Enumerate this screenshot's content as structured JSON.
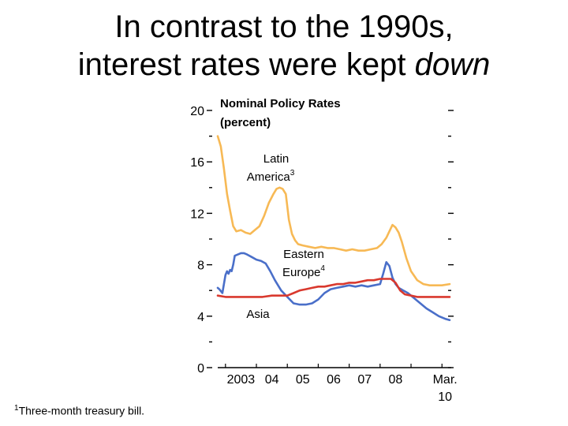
{
  "slide": {
    "title_line1": "In contrast to the 1990s,",
    "title_line2_prefix": "interest rates were kept ",
    "title_line2_emphasis": "down"
  },
  "footnote": {
    "marker": "1",
    "text": "Three-month treasury bill."
  },
  "chart_data": {
    "type": "line",
    "title_line1": "Nominal Policy Rates",
    "title_line2": "(percent)",
    "x_tick_labels": [
      "2003",
      "04",
      "05",
      "06",
      "07",
      "08",
      "Mar."
    ],
    "x_tick_sublabel": "10",
    "xlim": [
      2002.75,
      2010.3
    ],
    "ylim": [
      0,
      20
    ],
    "y_major_ticks": [
      0,
      4,
      8,
      12,
      16,
      20
    ],
    "y_minor_ticks": [
      2,
      6,
      10,
      14,
      18
    ],
    "grid": false,
    "series": [
      {
        "name": "Latin America",
        "label_line1": "Latin",
        "label_line2": "America",
        "note": "3",
        "color": "#F7B955",
        "x": [
          2002.75,
          2002.85,
          2002.95,
          2003.05,
          2003.15,
          2003.25,
          2003.35,
          2003.5,
          2003.65,
          2003.8,
          2003.95,
          2004.1,
          2004.25,
          2004.4,
          2004.55,
          2004.65,
          2004.75,
          2004.85,
          2004.95,
          2005.05,
          2005.15,
          2005.25,
          2005.35,
          2005.5,
          2005.7,
          2005.9,
          2006.1,
          2006.3,
          2006.5,
          2006.7,
          2006.9,
          2007.1,
          2007.3,
          2007.5,
          2007.7,
          2007.9,
          2008.05,
          2008.2,
          2008.3,
          2008.4,
          2008.5,
          2008.6,
          2008.7,
          2008.85,
          2009.0,
          2009.2,
          2009.4,
          2009.6,
          2009.8,
          2010.0,
          2010.25
        ],
        "values": [
          18.0,
          17.2,
          15.5,
          13.5,
          12.2,
          11.0,
          10.6,
          10.7,
          10.5,
          10.4,
          10.7,
          11.0,
          11.8,
          12.8,
          13.5,
          13.9,
          14.0,
          13.9,
          13.5,
          11.5,
          10.4,
          9.9,
          9.6,
          9.5,
          9.4,
          9.3,
          9.4,
          9.3,
          9.3,
          9.2,
          9.1,
          9.2,
          9.1,
          9.1,
          9.2,
          9.3,
          9.6,
          10.1,
          10.6,
          11.1,
          10.9,
          10.5,
          9.8,
          8.5,
          7.5,
          6.8,
          6.5,
          6.4,
          6.4,
          6.4,
          6.5
        ]
      },
      {
        "name": "Eastern Europe",
        "label_line1": "Eastern",
        "label_line2": "Europe",
        "note": "4",
        "color": "#4A6FC9",
        "x": [
          2002.75,
          2002.8,
          2002.9,
          2003.0,
          2003.05,
          2003.1,
          2003.15,
          2003.2,
          2003.25,
          2003.3,
          2003.4,
          2003.5,
          2003.6,
          2003.7,
          2003.85,
          2004.0,
          2004.15,
          2004.3,
          2004.45,
          2004.6,
          2004.8,
          2005.0,
          2005.2,
          2005.4,
          2005.6,
          2005.8,
          2006.0,
          2006.2,
          2006.4,
          2006.6,
          2006.8,
          2007.0,
          2007.2,
          2007.4,
          2007.6,
          2007.8,
          2008.0,
          2008.1,
          2008.2,
          2008.3,
          2008.4,
          2008.5,
          2008.6,
          2008.75,
          2008.9,
          2009.1,
          2009.3,
          2009.5,
          2009.7,
          2009.9,
          2010.1,
          2010.25
        ],
        "values": [
          6.2,
          6.1,
          5.8,
          7.2,
          7.5,
          7.3,
          7.6,
          7.5,
          8.0,
          8.7,
          8.8,
          8.9,
          8.9,
          8.8,
          8.6,
          8.4,
          8.3,
          8.1,
          7.5,
          6.8,
          6.0,
          5.5,
          5.0,
          4.9,
          4.9,
          5.0,
          5.3,
          5.8,
          6.1,
          6.2,
          6.3,
          6.4,
          6.3,
          6.4,
          6.3,
          6.4,
          6.5,
          7.3,
          8.2,
          7.9,
          7.0,
          6.5,
          6.2,
          6.0,
          5.8,
          5.4,
          5.0,
          4.6,
          4.3,
          4.0,
          3.8,
          3.7
        ]
      },
      {
        "name": "Asia",
        "label_line1": "Asia",
        "label_line2": "",
        "note": "",
        "color": "#D9392E",
        "x": [
          2002.75,
          2003.0,
          2003.3,
          2003.6,
          2003.9,
          2004.2,
          2004.5,
          2004.8,
          2005.0,
          2005.2,
          2005.4,
          2005.6,
          2005.8,
          2006.0,
          2006.2,
          2006.4,
          2006.6,
          2006.8,
          2007.0,
          2007.2,
          2007.4,
          2007.6,
          2007.8,
          2008.0,
          2008.2,
          2008.35,
          2008.5,
          2008.65,
          2008.8,
          2009.0,
          2009.2,
          2009.4,
          2009.6,
          2009.8,
          2010.0,
          2010.25
        ],
        "values": [
          5.6,
          5.5,
          5.5,
          5.5,
          5.5,
          5.5,
          5.6,
          5.6,
          5.6,
          5.8,
          6.0,
          6.1,
          6.2,
          6.3,
          6.3,
          6.4,
          6.5,
          6.5,
          6.6,
          6.6,
          6.7,
          6.8,
          6.8,
          6.9,
          6.9,
          6.9,
          6.6,
          6.0,
          5.7,
          5.6,
          5.5,
          5.5,
          5.5,
          5.5,
          5.5,
          5.5
        ]
      }
    ]
  }
}
